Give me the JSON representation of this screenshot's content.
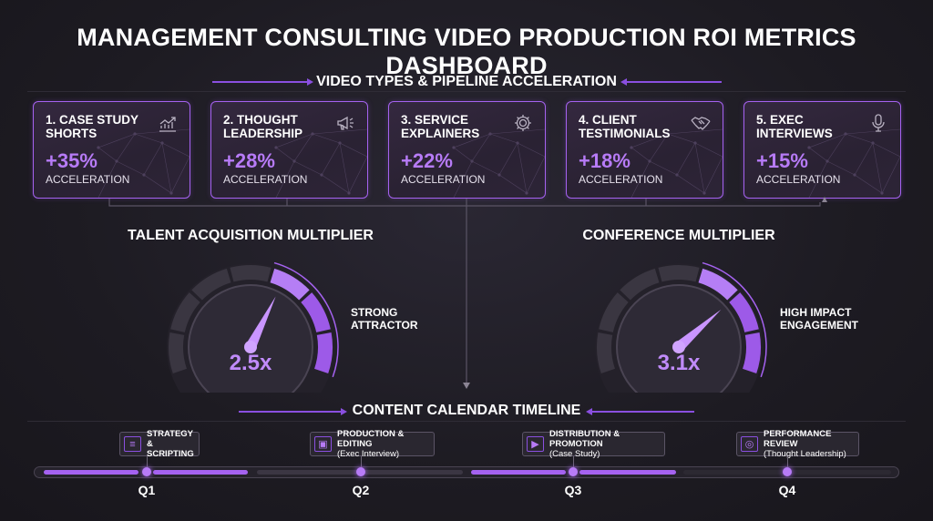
{
  "header": {
    "title": "MANAGEMENT CONSULTING VIDEO PRODUCTION ROI METRICS DASHBOARD"
  },
  "pipeline": {
    "heading": "VIDEO TYPES & PIPELINE ACCELERATION",
    "cards": [
      {
        "name": "1. CASE STUDY SHORTS",
        "value": "+35%",
        "unit": "ACCELERATION",
        "icon": "trend-chart-icon"
      },
      {
        "name": "2. THOUGHT LEADERSHIP",
        "value": "+28%",
        "unit": "ACCELERATION",
        "icon": "megaphone-icon"
      },
      {
        "name": "3. SERVICE EXPLAINERS",
        "value": "+22%",
        "unit": "ACCELERATION",
        "icon": "gear-icon"
      },
      {
        "name": "4. CLIENT TESTIMONIALS",
        "value": "+18%",
        "unit": "ACCELERATION",
        "icon": "handshake-icon"
      },
      {
        "name": "5. EXEC INTERVIEWS",
        "value": "+15%",
        "unit": "ACCELERATION",
        "icon": "microphone-icon"
      }
    ]
  },
  "gauges": [
    {
      "title": "TALENT ACQUISITION MULTIPLIER",
      "value": "2.5x",
      "label_line1": "STRONG",
      "label_line2": "ATTRACTOR",
      "level": 0.62
    },
    {
      "title": "CONFERENCE MULTIPLIER",
      "value": "3.1x",
      "label_line1": "HIGH IMPACT",
      "label_line2": "ENGAGEMENT",
      "level": 0.72
    }
  ],
  "timeline": {
    "heading": "CONTENT CALENDAR TIMELINE",
    "quarters": [
      {
        "q": "Q1",
        "line1": "STRATEGY &",
        "line2": "SCRIPTING"
      },
      {
        "q": "Q2",
        "line1": "PRODUCTION & EDITING",
        "line2": "(Exec Interview)"
      },
      {
        "q": "Q3",
        "line1": "DISTRIBUTION & PROMOTION",
        "line2": "(Case Study)"
      },
      {
        "q": "Q4",
        "line1": "PERFORMANCE REVIEW",
        "line2": "(Thought Leadership)"
      }
    ]
  },
  "colors": {
    "accent": "#a562f0",
    "accent_light": "#c08bfa",
    "background": "#1d1b22"
  }
}
